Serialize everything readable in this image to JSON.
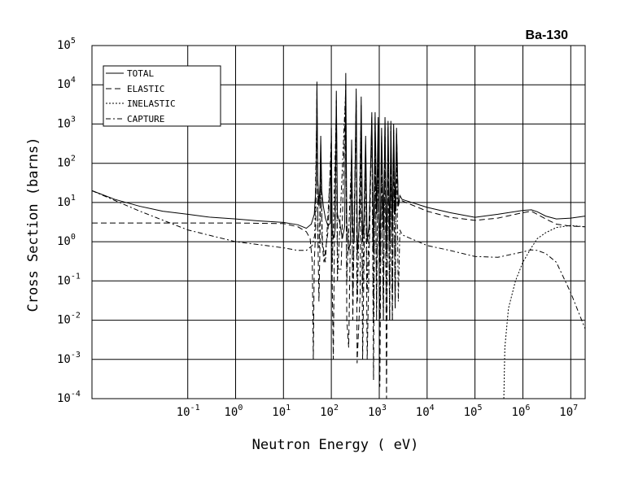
{
  "chart_data": {
    "type": "line",
    "title": "Ba-130",
    "xlabel": "Neutron Energy ( eV)",
    "ylabel": "Cross Section (barns)",
    "x_scale": "log",
    "y_scale": "log",
    "xlim": [
      0.001,
      20000000
    ],
    "ylim": [
      0.0001,
      100000
    ],
    "grid": true,
    "legend_position": "top-left",
    "x_ticks": [
      {
        "value": 0.1,
        "base": "10",
        "exp": "-1"
      },
      {
        "value": 1,
        "base": "10",
        "exp": "0"
      },
      {
        "value": 10,
        "base": "10",
        "exp": "1"
      },
      {
        "value": 100,
        "base": "10",
        "exp": "2"
      },
      {
        "value": 1000,
        "base": "10",
        "exp": "3"
      },
      {
        "value": 10000,
        "base": "10",
        "exp": "4"
      },
      {
        "value": 100000,
        "base": "10",
        "exp": "5"
      },
      {
        "value": 1000000,
        "base": "10",
        "exp": "6"
      },
      {
        "value": 10000000,
        "base": "10",
        "exp": "7"
      }
    ],
    "y_ticks": [
      {
        "value": 0.0001,
        "base": "10",
        "exp": "-4"
      },
      {
        "value": 0.001,
        "base": "10",
        "exp": "-3"
      },
      {
        "value": 0.01,
        "base": "10",
        "exp": "-2"
      },
      {
        "value": 0.1,
        "base": "10",
        "exp": "-1"
      },
      {
        "value": 1,
        "base": "10",
        "exp": "0"
      },
      {
        "value": 10,
        "base": "10",
        "exp": "1"
      },
      {
        "value": 100,
        "base": "10",
        "exp": "2"
      },
      {
        "value": 1000,
        "base": "10",
        "exp": "3"
      },
      {
        "value": 10000,
        "base": "10",
        "exp": "4"
      },
      {
        "value": 100000,
        "base": "10",
        "exp": "5"
      }
    ],
    "series": [
      {
        "name": "TOTAL",
        "dash": "solid",
        "points": [
          [
            0.001,
            20
          ],
          [
            0.003,
            12
          ],
          [
            0.01,
            8
          ],
          [
            0.03,
            6
          ],
          [
            0.1,
            5
          ],
          [
            0.3,
            4.2
          ],
          [
            1,
            3.8
          ],
          [
            3,
            3.4
          ],
          [
            10,
            3.1
          ],
          [
            20,
            2.7
          ],
          [
            30,
            2.2
          ],
          [
            38,
            2.8
          ],
          [
            44,
            5
          ],
          [
            48,
            30
          ],
          [
            50,
            12000
          ],
          [
            52,
            40
          ],
          [
            55,
            8
          ],
          [
            58,
            30
          ],
          [
            60,
            500
          ],
          [
            63,
            20
          ],
          [
            68,
            8
          ],
          [
            75,
            4
          ],
          [
            85,
            2.5
          ],
          [
            95,
            3
          ],
          [
            100,
            800
          ],
          [
            104,
            2
          ],
          [
            110,
            1.2
          ],
          [
            120,
            2
          ],
          [
            127,
            7000
          ],
          [
            134,
            5
          ],
          [
            150,
            3
          ],
          [
            170,
            1.2
          ],
          [
            190,
            2.5
          ],
          [
            200,
            20000
          ],
          [
            210,
            3
          ],
          [
            230,
            0.6
          ],
          [
            250,
            1
          ],
          [
            265,
            400
          ],
          [
            280,
            2
          ],
          [
            300,
            1
          ],
          [
            330,
            8000
          ],
          [
            350,
            0.5
          ],
          [
            390,
            4
          ],
          [
            420,
            5000
          ],
          [
            450,
            1
          ],
          [
            480,
            4
          ],
          [
            520,
            500
          ],
          [
            560,
            1
          ],
          [
            620,
            3
          ],
          [
            700,
            2000
          ],
          [
            760,
            0.5
          ],
          [
            820,
            2000
          ],
          [
            880,
            5
          ],
          [
            950,
            1500
          ],
          [
            1030,
            0.3
          ],
          [
            1120,
            800
          ],
          [
            1220,
            2
          ],
          [
            1320,
            1500
          ],
          [
            1420,
            0.5
          ],
          [
            1530,
            1200
          ],
          [
            1650,
            1
          ],
          [
            1750,
            1200
          ],
          [
            1880,
            2
          ],
          [
            2000,
            1000
          ],
          [
            2150,
            5
          ],
          [
            2300,
            800
          ],
          [
            2500,
            8
          ],
          [
            2700,
            15
          ],
          [
            3000,
            12
          ],
          [
            10000,
            7.5
          ],
          [
            30000,
            5.5
          ],
          [
            100000,
            4.2
          ],
          [
            300000,
            5
          ],
          [
            1000000,
            6.3
          ],
          [
            1500000,
            6.5
          ],
          [
            2000000,
            5.8
          ],
          [
            3000000,
            4.5
          ],
          [
            5000000,
            3.8
          ],
          [
            10000000,
            4
          ],
          [
            20000000,
            4.5
          ]
        ]
      },
      {
        "name": "ELASTIC",
        "dash": "long",
        "points": [
          [
            0.001,
            3
          ],
          [
            0.01,
            3
          ],
          [
            0.1,
            3
          ],
          [
            1,
            3
          ],
          [
            10,
            2.9
          ],
          [
            20,
            2.4
          ],
          [
            30,
            1.8
          ],
          [
            36,
            1.2
          ],
          [
            40,
            0.3
          ],
          [
            42,
            0.001
          ],
          [
            44,
            0.3
          ],
          [
            47,
            2
          ],
          [
            50,
            8000
          ],
          [
            52,
            2
          ],
          [
            55,
            0.03
          ],
          [
            58,
            1
          ],
          [
            60,
            300
          ],
          [
            64,
            1
          ],
          [
            70,
            0.3
          ],
          [
            85,
            1.8
          ],
          [
            100,
            500
          ],
          [
            104,
            0.1
          ],
          [
            110,
            0.001
          ],
          [
            115,
            0.5
          ],
          [
            127,
            4000
          ],
          [
            135,
            0.2
          ],
          [
            160,
            0.2
          ],
          [
            200,
            10000
          ],
          [
            210,
            0.01
          ],
          [
            230,
            0.002
          ],
          [
            265,
            200
          ],
          [
            280,
            0.01
          ],
          [
            330,
            4000
          ],
          [
            345,
            0.0008
          ],
          [
            400,
            0.05
          ],
          [
            420,
            3000
          ],
          [
            450,
            0.001
          ],
          [
            520,
            300
          ],
          [
            560,
            0.001
          ],
          [
            700,
            1500
          ],
          [
            760,
            0.0003
          ],
          [
            820,
            1500
          ],
          [
            880,
            0.01
          ],
          [
            950,
            1000
          ],
          [
            1030,
            0.0002
          ],
          [
            1120,
            500
          ],
          [
            1220,
            0.01
          ],
          [
            1320,
            1200
          ],
          [
            1420,
            0.0001
          ],
          [
            1530,
            900
          ],
          [
            1650,
            0.01
          ],
          [
            1750,
            900
          ],
          [
            1880,
            0.01
          ],
          [
            2000,
            700
          ],
          [
            2150,
            0.02
          ],
          [
            2300,
            600
          ],
          [
            2500,
            8
          ],
          [
            2700,
            12
          ],
          [
            3000,
            11
          ],
          [
            10000,
            6
          ],
          [
            30000,
            4.2
          ],
          [
            100000,
            3.5
          ],
          [
            300000,
            4
          ],
          [
            1000000,
            5.5
          ],
          [
            1500000,
            6
          ],
          [
            2000000,
            5
          ],
          [
            3000000,
            3.8
          ],
          [
            5000000,
            2.8
          ],
          [
            10000000,
            2.5
          ],
          [
            20000000,
            2.4
          ]
        ]
      },
      {
        "name": "INELASTIC",
        "dash": "short",
        "points": [
          [
            400000,
            0.0001
          ],
          [
            420000,
            0.002
          ],
          [
            500000,
            0.02
          ],
          [
            700000,
            0.1
          ],
          [
            1000000,
            0.3
          ],
          [
            1500000,
            0.7
          ],
          [
            2000000,
            1.2
          ],
          [
            3000000,
            1.7
          ],
          [
            5000000,
            2.3
          ],
          [
            10000000,
            2.6
          ],
          [
            20000000,
            2.4
          ]
        ]
      },
      {
        "name": "CAPTURE",
        "dash": "dashdot",
        "points": [
          [
            0.001,
            20
          ],
          [
            0.01,
            6
          ],
          [
            0.1,
            2
          ],
          [
            1,
            1
          ],
          [
            10,
            0.7
          ],
          [
            20,
            0.6
          ],
          [
            30,
            0.6
          ],
          [
            40,
            0.8
          ],
          [
            45,
            1.5
          ],
          [
            50,
            3000
          ],
          [
            53,
            1
          ],
          [
            56,
            0.7
          ],
          [
            60,
            100
          ],
          [
            65,
            1
          ],
          [
            75,
            0.3
          ],
          [
            100,
            200
          ],
          [
            104,
            0.2
          ],
          [
            127,
            2000
          ],
          [
            134,
            0.1
          ],
          [
            200,
            8000
          ],
          [
            210,
            0.1
          ],
          [
            265,
            150
          ],
          [
            280,
            0.05
          ],
          [
            330,
            3000
          ],
          [
            350,
            0.03
          ],
          [
            420,
            2000
          ],
          [
            450,
            0.05
          ],
          [
            520,
            200
          ],
          [
            560,
            0.05
          ],
          [
            700,
            1000
          ],
          [
            760,
            0.01
          ],
          [
            820,
            1000
          ],
          [
            880,
            0.02
          ],
          [
            950,
            800
          ],
          [
            1030,
            0.01
          ],
          [
            1120,
            400
          ],
          [
            1220,
            0.01
          ],
          [
            1320,
            1000
          ],
          [
            1420,
            0.01
          ],
          [
            1530,
            800
          ],
          [
            1650,
            0.01
          ],
          [
            1750,
            700
          ],
          [
            1880,
            0.01
          ],
          [
            2000,
            600
          ],
          [
            2150,
            0.02
          ],
          [
            2300,
            500
          ],
          [
            2500,
            0.03
          ],
          [
            2700,
            2
          ],
          [
            3000,
            1.5
          ],
          [
            10000,
            0.8
          ],
          [
            30000,
            0.6
          ],
          [
            100000,
            0.42
          ],
          [
            300000,
            0.4
          ],
          [
            1000000,
            0.55
          ],
          [
            1500000,
            0.62
          ],
          [
            2000000,
            0.6
          ],
          [
            3000000,
            0.5
          ],
          [
            5000000,
            0.3
          ],
          [
            10000000,
            0.05
          ],
          [
            20000000,
            0.006
          ]
        ]
      }
    ]
  }
}
